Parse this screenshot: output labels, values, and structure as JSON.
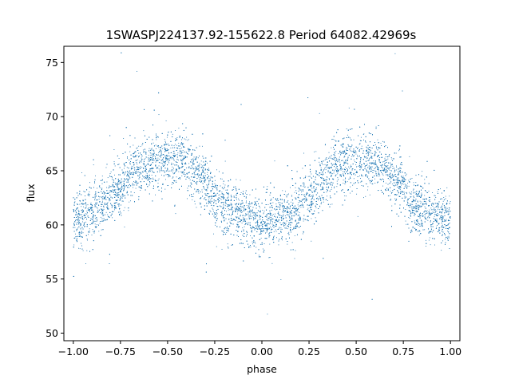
{
  "chart_data": {
    "type": "scatter",
    "title": "1SWASPJ224137.92-155622.8 Period 64082.42969s",
    "xlabel": "phase",
    "ylabel": "flux",
    "xlim": [
      -1.05,
      1.05
    ],
    "ylim": [
      49.3,
      76.5
    ],
    "xticks": [
      -1.0,
      -0.75,
      -0.5,
      -0.25,
      0.0,
      0.25,
      0.5,
      0.75,
      1.0
    ],
    "xtick_labels": [
      "−1.00",
      "−0.75",
      "−0.50",
      "−0.25",
      "0.00",
      "0.25",
      "0.50",
      "0.75",
      "1.00"
    ],
    "yticks": [
      50,
      55,
      60,
      65,
      70,
      75
    ],
    "ytick_labels": [
      "50",
      "55",
      "60",
      "65",
      "70",
      "75"
    ],
    "grid": false,
    "legend": "none",
    "series": [
      {
        "color": "#1f77b4",
        "x": [
          -1.0,
          -0.95,
          -0.9,
          -0.85,
          -0.8,
          -0.75,
          -0.7,
          -0.65,
          -0.6,
          -0.55,
          -0.5,
          -0.45,
          -0.4,
          -0.35,
          -0.3,
          -0.25,
          -0.2,
          -0.15,
          -0.1,
          -0.05,
          0.0,
          0.05,
          0.1,
          0.15,
          0.2,
          0.25,
          0.3,
          0.35,
          0.4,
          0.45,
          0.5,
          0.55,
          0.6,
          0.65,
          0.7,
          0.75,
          0.8,
          0.85,
          0.9,
          0.95,
          1.0
        ],
        "y": [
          60.5,
          60.6,
          61.0,
          61.8,
          62.8,
          63.6,
          64.6,
          65.4,
          65.8,
          66.0,
          66.1,
          66.0,
          65.7,
          65.0,
          64.0,
          62.6,
          61.6,
          61.1,
          60.7,
          60.5,
          60.3,
          60.3,
          60.6,
          61.0,
          61.6,
          62.6,
          63.6,
          64.6,
          65.4,
          65.8,
          66.0,
          66.0,
          65.8,
          65.2,
          64.3,
          63.2,
          62.0,
          61.2,
          60.8,
          60.6,
          60.5
        ],
        "y_spread": 1.3,
        "n_points": 11000
      }
    ]
  }
}
